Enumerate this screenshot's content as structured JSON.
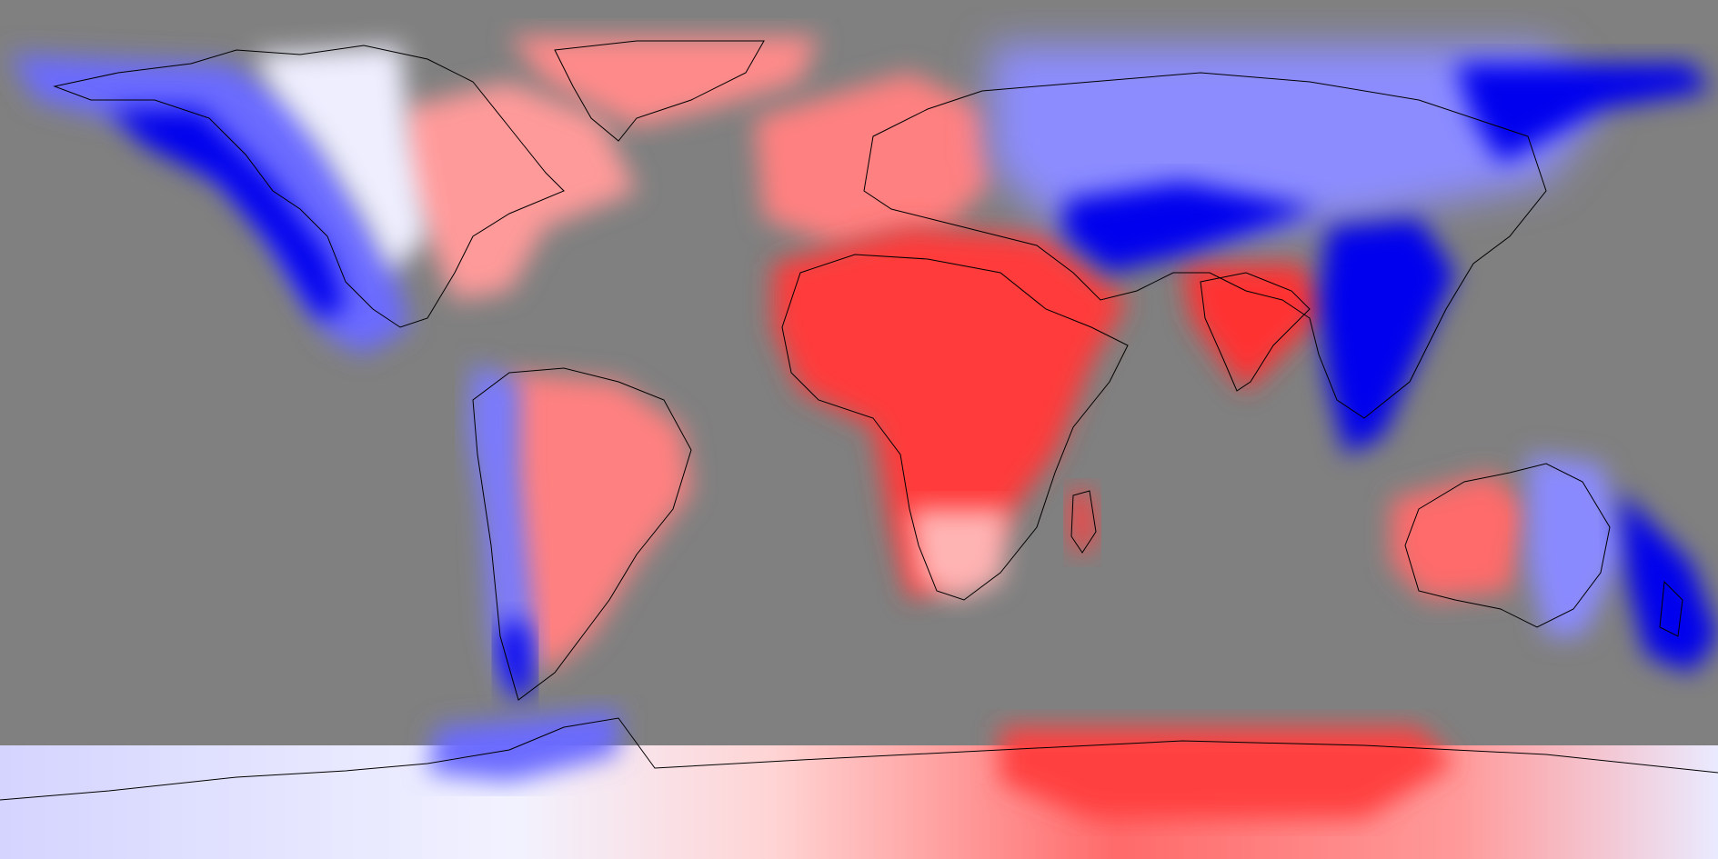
{
  "map": {
    "projection": "equirectangular",
    "extent": {
      "lon": [
        -180,
        180
      ],
      "lat": [
        -90,
        90
      ]
    },
    "ocean_color": "#808080",
    "coastline_color": "#000000",
    "palette": {
      "strong_positive": "#ff2a2a",
      "mid_positive": "#ff7a7a",
      "weak_positive": "#ffd4d4",
      "neutral": "#ffffff",
      "weak_negative": "#d4d4ff",
      "mid_negative": "#7a7aff",
      "strong_negative": "#0000ee"
    },
    "legend_visible": false,
    "labels_visible": false
  }
}
